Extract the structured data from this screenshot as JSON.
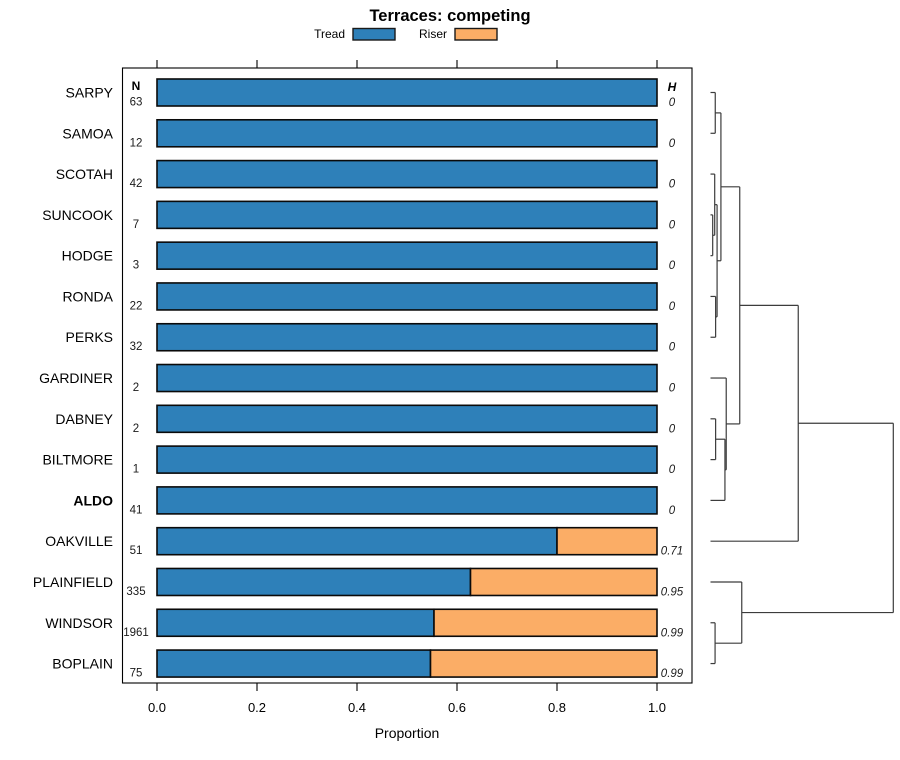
{
  "chart_data": {
    "type": "bar",
    "subtype": "horizontal-stacked-proportion-with-dendrogram",
    "title": "Terraces: competing",
    "xlabel": "Proportion",
    "n_header": "N",
    "h_header": "H",
    "xlim": [
      0.0,
      1.0
    ],
    "x_ticks": [
      0.0,
      0.2,
      0.4,
      0.6,
      0.8,
      1.0
    ],
    "x_tick_labels": [
      "0.0",
      "0.2",
      "0.4",
      "0.6",
      "0.8",
      "1.0"
    ],
    "legend_position": "top",
    "legend": [
      {
        "label": "Tread",
        "color": "#2e80b9"
      },
      {
        "label": "Riser",
        "color": "#fbad66"
      }
    ],
    "rows": [
      {
        "label": "SARPY",
        "n": "63",
        "tread": 1.0,
        "riser": 0.0,
        "h": "0",
        "bold": false
      },
      {
        "label": "SAMOA",
        "n": "12",
        "tread": 1.0,
        "riser": 0.0,
        "h": "0",
        "bold": false
      },
      {
        "label": "SCOTAH",
        "n": "42",
        "tread": 1.0,
        "riser": 0.0,
        "h": "0",
        "bold": false
      },
      {
        "label": "SUNCOOK",
        "n": "7",
        "tread": 1.0,
        "riser": 0.0,
        "h": "0",
        "bold": false
      },
      {
        "label": "HODGE",
        "n": "3",
        "tread": 1.0,
        "riser": 0.0,
        "h": "0",
        "bold": false
      },
      {
        "label": "RONDA",
        "n": "22",
        "tread": 1.0,
        "riser": 0.0,
        "h": "0",
        "bold": false
      },
      {
        "label": "PERKS",
        "n": "32",
        "tread": 1.0,
        "riser": 0.0,
        "h": "0",
        "bold": false
      },
      {
        "label": "GARDINER",
        "n": "2",
        "tread": 1.0,
        "riser": 0.0,
        "h": "0",
        "bold": false
      },
      {
        "label": "DABNEY",
        "n": "2",
        "tread": 1.0,
        "riser": 0.0,
        "h": "0",
        "bold": false
      },
      {
        "label": "BILTMORE",
        "n": "1",
        "tread": 1.0,
        "riser": 0.0,
        "h": "0",
        "bold": false
      },
      {
        "label": "ALDO",
        "n": "41",
        "tread": 1.0,
        "riser": 0.0,
        "h": "0",
        "bold": true
      },
      {
        "label": "OAKVILLE",
        "n": "51",
        "tread": 0.8,
        "riser": 0.2,
        "h": "0.71",
        "bold": false
      },
      {
        "label": "PLAINFIELD",
        "n": "335",
        "tread": 0.627,
        "riser": 0.373,
        "h": "0.95",
        "bold": false
      },
      {
        "label": "WINDSOR",
        "n": "1961",
        "tread": 0.554,
        "riser": 0.446,
        "h": "0.99",
        "bold": false
      },
      {
        "label": "BOPLAIN",
        "n": "75",
        "tread": 0.547,
        "riser": 0.453,
        "h": "0.99",
        "bold": false
      }
    ],
    "dendrogram": {
      "side": "right",
      "merges": [
        {
          "id": "M0",
          "a": "L0",
          "b": "L1",
          "h": 0.026
        },
        {
          "id": "M1",
          "a": "L3",
          "b": "L4",
          "h": 0.012
        },
        {
          "id": "M2",
          "a": "L2",
          "b": "M1",
          "h": 0.023
        },
        {
          "id": "M3",
          "a": "L5",
          "b": "L6",
          "h": 0.028
        },
        {
          "id": "M4",
          "a": "M2",
          "b": "M3",
          "h": 0.036
        },
        {
          "id": "M5",
          "a": "M0",
          "b": "M4",
          "h": 0.057
        },
        {
          "id": "M6",
          "a": "L8",
          "b": "L9",
          "h": 0.028
        },
        {
          "id": "M7",
          "a": "M6",
          "b": "L10",
          "h": 0.079
        },
        {
          "id": "M8",
          "a": "L7",
          "b": "M7",
          "h": 0.086
        },
        {
          "id": "M9",
          "a": "M5",
          "b": "M8",
          "h": 0.16
        },
        {
          "id": "M10",
          "a": "M9",
          "b": "L11",
          "h": 0.48
        },
        {
          "id": "M11",
          "a": "L13",
          "b": "L14",
          "h": 0.025
        },
        {
          "id": "M12",
          "a": "L12",
          "b": "M11",
          "h": 0.171
        },
        {
          "id": "M13",
          "a": "M10",
          "b": "M12",
          "h": 1.0
        }
      ]
    },
    "colors": {
      "tread": "#2e80b9",
      "riser": "#fbad66",
      "bar_border": "#0a0a0a",
      "axis": "#000000",
      "dendrogram_line": "#3c3c3c",
      "background": "#ffffff"
    }
  }
}
